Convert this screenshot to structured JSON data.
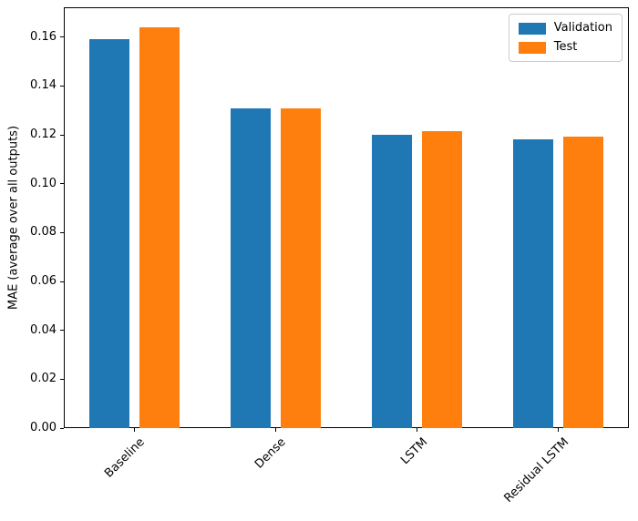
{
  "figure": {
    "background": "#ffffff",
    "axis_color": "#000000",
    "legend_border_color": "#cccccc"
  },
  "chart_data": {
    "type": "bar",
    "title": "",
    "xlabel": "",
    "ylabel": "MAE (average over all outputs)",
    "categories": [
      "Baseline",
      "Dense",
      "LSTM",
      "Residual LSTM"
    ],
    "series": [
      {
        "name": "Validation",
        "color": "#1f77b4",
        "values": [
          0.159,
          0.131,
          0.12,
          0.1183
        ]
      },
      {
        "name": "Test",
        "color": "#ff7f0e",
        "values": [
          0.164,
          0.131,
          0.1215,
          0.1193
        ]
      }
    ],
    "ylim": [
      0,
      0.1722
    ],
    "yticks": [
      0.0,
      0.02,
      0.04,
      0.06,
      0.08,
      0.1,
      0.12,
      0.14,
      0.16
    ],
    "ytick_decimals": 2,
    "xtick_rotation": 45,
    "grid": false,
    "legend": {
      "position": "upper right",
      "entries": [
        "Validation",
        "Test"
      ]
    }
  }
}
